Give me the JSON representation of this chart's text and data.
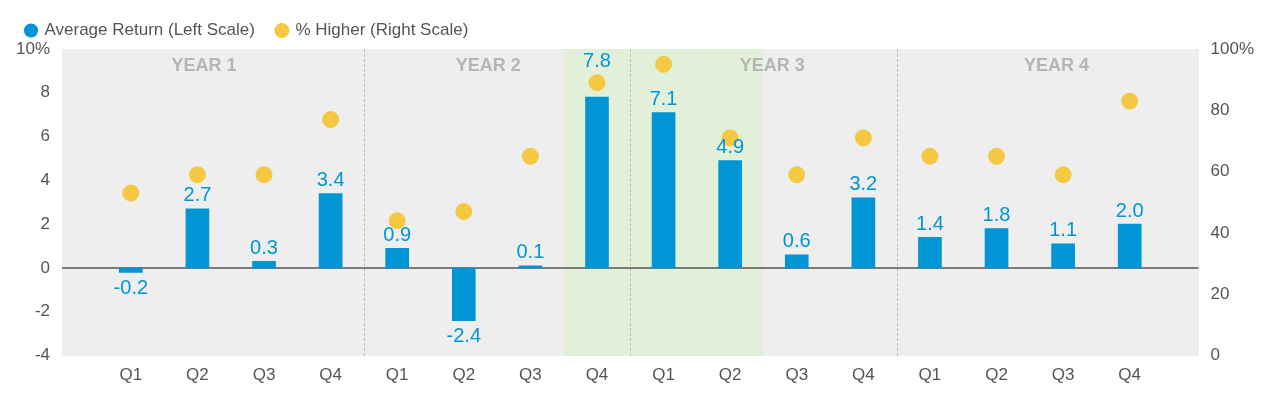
{
  "chart_data": {
    "type": "bar",
    "categories": [
      "Q1",
      "Q2",
      "Q3",
      "Q4",
      "Q1",
      "Q2",
      "Q3",
      "Q4",
      "Q1",
      "Q2",
      "Q3",
      "Q4",
      "Q1",
      "Q2",
      "Q3",
      "Q4"
    ],
    "series": [
      {
        "name": "Average Return (Left Scale)",
        "color": "#0096d6",
        "values": [
          -0.2,
          2.7,
          0.3,
          3.4,
          0.9,
          -2.4,
          0.1,
          7.8,
          7.1,
          4.9,
          0.6,
          3.2,
          1.4,
          1.8,
          1.1,
          2.0
        ],
        "value_labels": [
          "-0.2",
          "2.7",
          "0.3",
          "3.4",
          "0.9",
          "-2.4",
          "0.1",
          "7.8",
          "7.1",
          "4.9",
          "0.6",
          "3.2",
          "1.4",
          "1.8",
          "1.1",
          "2.0"
        ]
      },
      {
        "name": "% Higher (Right Scale)",
        "type": "scatter",
        "axis": "y2",
        "color": "#f5c842",
        "values": [
          53,
          59,
          59,
          77,
          44,
          47,
          65,
          89,
          95,
          71,
          59,
          71,
          65,
          65,
          59,
          83
        ]
      }
    ],
    "ylim": [
      -4,
      10
    ],
    "yticks": [
      -4,
      -2,
      0,
      2,
      4,
      6,
      8,
      {
        "value": 10,
        "label": "10%"
      }
    ],
    "y2lim": [
      0,
      100
    ],
    "y2ticks": [
      0,
      20,
      40,
      60,
      80,
      {
        "value": 100,
        "label": "100%"
      }
    ],
    "ref_lines": [
      {
        "axis": "y",
        "value": 0,
        "color": "#555555",
        "line_style": "solid"
      }
    ],
    "annotations": [
      "YEAR 1",
      "YEAR 2",
      "YEAR 3",
      "YEAR 4"
    ],
    "legend": "top left",
    "marker": "circle",
    "grid": false
  }
}
